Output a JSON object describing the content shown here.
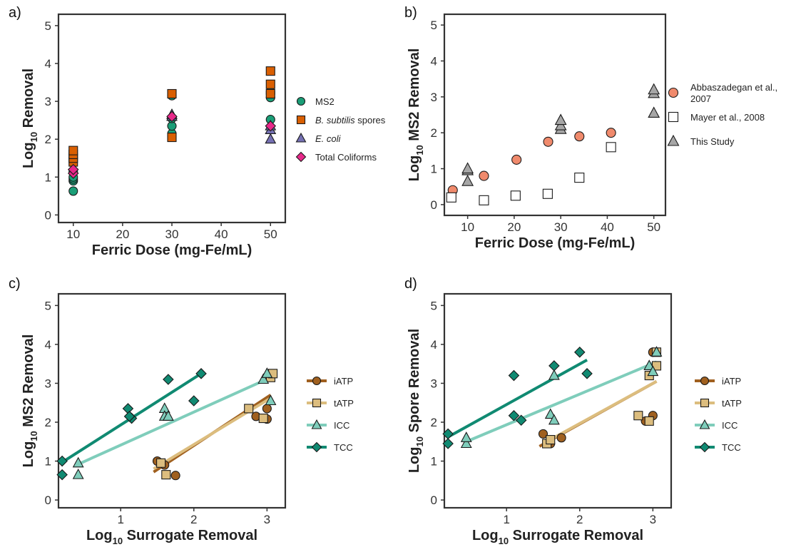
{
  "colors": {
    "MS2": "#1a9e77",
    "Bsub": "#d95f02",
    "Ecoli": "#7570b3",
    "TC": "#e7298a",
    "Abbas": "#f08a6c",
    "Mayer": "#ffffff",
    "This": "#a6a6a6",
    "iATP": "#a0601f",
    "tATP": "#dcbd7e",
    "ICC": "#7fcdbb",
    "TCC": "#108a72"
  },
  "chart_data": [
    {
      "panel": "a)",
      "type": "scatter",
      "xlabel": "Ferric Dose (mg-Fe/mL)",
      "ylabel_main": "Log",
      "ylabel_sub": "10",
      "ylabel_rest": " Removal",
      "xlim": [
        7,
        53
      ],
      "ylim": [
        -0.2,
        5.3
      ],
      "xticks": [
        "10",
        "20",
        "30",
        "40",
        "50"
      ],
      "xtick_values": [
        10,
        20,
        30,
        40,
        50
      ],
      "yticks": [
        "0",
        "1",
        "2",
        "3",
        "4",
        "5"
      ],
      "ytick_values": [
        0,
        1,
        2,
        3,
        4,
        5
      ],
      "series": [
        {
          "name": "MS2",
          "italic": false,
          "marker": "circle",
          "color_key": "MS2",
          "points": [
            [
              10,
              0.63
            ],
            [
              10,
              0.9
            ],
            [
              10,
              0.95
            ],
            [
              10,
              1.0
            ],
            [
              10,
              1.15
            ],
            [
              30,
              2.08
            ],
            [
              30,
              2.15
            ],
            [
              30,
              2.35
            ],
            [
              30,
              2.55
            ],
            [
              30,
              3.15
            ],
            [
              50,
              2.52
            ],
            [
              50,
              3.1
            ],
            [
              50,
              3.2
            ],
            [
              50,
              3.25
            ]
          ]
        },
        {
          "name": "B. subtilis",
          "name_rest": " spores",
          "italic": true,
          "marker": "square",
          "color_key": "Bsub",
          "points": [
            [
              10,
              1.4
            ],
            [
              10,
              1.5
            ],
            [
              10,
              1.6
            ],
            [
              10,
              1.7
            ],
            [
              30,
              2.05
            ],
            [
              30,
              3.2
            ],
            [
              50,
              3.2
            ],
            [
              50,
              3.45
            ],
            [
              50,
              3.8
            ]
          ]
        },
        {
          "name": "E. coli",
          "italic": true,
          "marker": "triangle",
          "color_key": "Ecoli",
          "points": [
            [
              30,
              2.6
            ],
            [
              30,
              2.65
            ],
            [
              50,
              2.0
            ],
            [
              50,
              2.25
            ],
            [
              50,
              2.35
            ]
          ]
        },
        {
          "name": "Total Coliforms",
          "italic": false,
          "marker": "diamond",
          "color_key": "TC",
          "points": [
            [
              10,
              1.1
            ],
            [
              10,
              1.2
            ],
            [
              30,
              2.6
            ],
            [
              50,
              2.35
            ]
          ]
        }
      ]
    },
    {
      "panel": "b)",
      "type": "scatter",
      "xlabel": "Ferric Dose (mg-Fe/mL)",
      "ylabel_main": "Log",
      "ylabel_sub": "10",
      "ylabel_rest": " MS2 Removal",
      "xlim": [
        5,
        52.5
      ],
      "ylim": [
        -0.3,
        5.3
      ],
      "xticks": [
        "10",
        "20",
        "30",
        "40",
        "50"
      ],
      "xtick_values": [
        10,
        20,
        30,
        40,
        50
      ],
      "yticks": [
        "0",
        "1",
        "2",
        "3",
        "4",
        "5"
      ],
      "ytick_values": [
        0,
        1,
        2,
        3,
        4,
        5
      ],
      "series": [
        {
          "name": "Abbaszadegan et al., ",
          "name_line2": "2007",
          "italic": false,
          "marker": "circle",
          "color_key": "Abbas",
          "points": [
            [
              6.8,
              0.4
            ],
            [
              13.5,
              0.8
            ],
            [
              20.5,
              1.25
            ],
            [
              27.3,
              1.75
            ],
            [
              34,
              1.9
            ],
            [
              40.8,
              2.0
            ]
          ]
        },
        {
          "name": "Mayer et al., 2008",
          "italic": false,
          "marker": "square",
          "color_key": "Mayer",
          "points": [
            [
              6.5,
              0.2
            ],
            [
              13.5,
              0.12
            ],
            [
              20.3,
              0.25
            ],
            [
              27.2,
              0.3
            ],
            [
              34,
              0.75
            ],
            [
              40.8,
              1.6
            ]
          ]
        },
        {
          "name": "This Study",
          "italic": false,
          "marker": "triangle",
          "color_key": "This",
          "points": [
            [
              10,
              0.65
            ],
            [
              10,
              0.95
            ],
            [
              10,
              1.0
            ],
            [
              30,
              2.1
            ],
            [
              30,
              2.2
            ],
            [
              30,
              2.35
            ],
            [
              50,
              2.55
            ],
            [
              50,
              3.1
            ],
            [
              50,
              3.2
            ]
          ]
        }
      ]
    },
    {
      "panel": "c)",
      "type": "scatter",
      "xlabel_main": "Log",
      "xlabel_sub": "10",
      "xlabel_rest": " Surrogate Removal",
      "ylabel_main": "Log",
      "ylabel_sub": "10",
      "ylabel_rest": " MS2 Removal",
      "xlim": [
        0.15,
        3.25
      ],
      "ylim": [
        -0.2,
        5.3
      ],
      "xticks": [
        "1",
        "2",
        "3"
      ],
      "xtick_values": [
        1,
        2,
        3
      ],
      "yticks": [
        "0",
        "1",
        "2",
        "3",
        "4",
        "5"
      ],
      "ytick_values": [
        0,
        1,
        2,
        3,
        4,
        5
      ],
      "series": [
        {
          "name": "iATP",
          "marker": "circle",
          "color_key": "iATP",
          "points": [
            [
              1.5,
              1.0
            ],
            [
              1.6,
              0.9
            ],
            [
              1.75,
              0.63
            ],
            [
              2.85,
              2.15
            ],
            [
              2.95,
              2.1
            ],
            [
              3.0,
              2.08
            ],
            [
              3.0,
              2.35
            ]
          ],
          "fit": [
            [
              1.45,
              0.72
            ],
            [
              3.05,
              2.7
            ]
          ]
        },
        {
          "name": "tATP",
          "marker": "square",
          "color_key": "tATP",
          "points": [
            [
              1.55,
              0.95
            ],
            [
              1.62,
              0.65
            ],
            [
              2.75,
              2.35
            ],
            [
              2.95,
              2.1
            ],
            [
              3.05,
              3.15
            ],
            [
              3.08,
              3.25
            ]
          ],
          "fit": [
            [
              1.45,
              0.8
            ],
            [
              3.05,
              2.62
            ]
          ]
        },
        {
          "name": "ICC",
          "marker": "triangle",
          "color_key": "ICC",
          "points": [
            [
              0.42,
              0.95
            ],
            [
              0.42,
              0.65
            ],
            [
              1.6,
              2.35
            ],
            [
              1.6,
              2.15
            ],
            [
              1.65,
              2.15
            ],
            [
              2.95,
              3.1
            ],
            [
              3.0,
              3.25
            ],
            [
              3.05,
              2.55
            ]
          ],
          "fit": [
            [
              0.42,
              0.92
            ],
            [
              3.05,
              3.15
            ]
          ]
        },
        {
          "name": "TCC",
          "marker": "diamond",
          "color_key": "TCC",
          "points": [
            [
              0.2,
              1.0
            ],
            [
              0.2,
              0.65
            ],
            [
              1.1,
              2.35
            ],
            [
              1.15,
              2.1
            ],
            [
              1.12,
              2.15
            ],
            [
              1.65,
              3.1
            ],
            [
              2.0,
              2.55
            ],
            [
              2.1,
              3.25
            ]
          ],
          "fit": [
            [
              0.2,
              0.97
            ],
            [
              2.1,
              3.25
            ]
          ]
        }
      ]
    },
    {
      "panel": "d)",
      "type": "scatter",
      "xlabel_main": "Log",
      "xlabel_sub": "10",
      "xlabel_rest": " Surrogate Removal",
      "ylabel_main": "Log",
      "ylabel_sub": "10",
      "ylabel_rest": " Spore Removal",
      "xlim": [
        0.15,
        3.25
      ],
      "ylim": [
        -0.2,
        5.3
      ],
      "xticks": [
        "1",
        "2",
        "3"
      ],
      "xtick_values": [
        1,
        2,
        3
      ],
      "yticks": [
        "0",
        "1",
        "2",
        "3",
        "4",
        "5"
      ],
      "ytick_values": [
        0,
        1,
        2,
        3,
        4,
        5
      ],
      "series": [
        {
          "name": "iATP",
          "marker": "circle",
          "color_key": "iATP",
          "points": [
            [
              1.5,
              1.7
            ],
            [
              1.6,
              1.45
            ],
            [
              1.75,
              1.6
            ],
            [
              2.9,
              2.03
            ],
            [
              3.0,
              2.17
            ],
            [
              3.0,
              3.8
            ]
          ],
          "fit": [
            [
              1.45,
              1.38
            ],
            [
              3.05,
              3.05
            ]
          ]
        },
        {
          "name": "tATP",
          "marker": "square",
          "color_key": "tATP",
          "points": [
            [
              1.55,
              1.45
            ],
            [
              1.6,
              1.55
            ],
            [
              2.8,
              2.17
            ],
            [
              2.95,
              2.03
            ],
            [
              2.95,
              3.2
            ],
            [
              3.05,
              3.45
            ],
            [
              3.05,
              3.8
            ]
          ],
          "fit": [
            [
              1.5,
              1.45
            ],
            [
              3.05,
              3.05
            ]
          ]
        },
        {
          "name": "ICC",
          "marker": "triangle",
          "color_key": "ICC",
          "points": [
            [
              0.45,
              1.45
            ],
            [
              0.45,
              1.6
            ],
            [
              1.6,
              2.2
            ],
            [
              1.65,
              2.05
            ],
            [
              1.65,
              3.2
            ],
            [
              2.95,
              3.45
            ],
            [
              3.0,
              3.3
            ],
            [
              3.05,
              3.8
            ]
          ],
          "fit": [
            [
              0.45,
              1.5
            ],
            [
              3.05,
              3.55
            ]
          ]
        },
        {
          "name": "TCC",
          "marker": "diamond",
          "color_key": "TCC",
          "points": [
            [
              0.2,
              1.7
            ],
            [
              0.2,
              1.45
            ],
            [
              1.1,
              3.2
            ],
            [
              1.1,
              2.17
            ],
            [
              1.2,
              2.05
            ],
            [
              1.65,
              3.45
            ],
            [
              2.0,
              3.8
            ],
            [
              2.1,
              3.25
            ]
          ],
          "fit": [
            [
              0.2,
              1.62
            ],
            [
              2.1,
              3.6
            ]
          ]
        }
      ]
    }
  ]
}
